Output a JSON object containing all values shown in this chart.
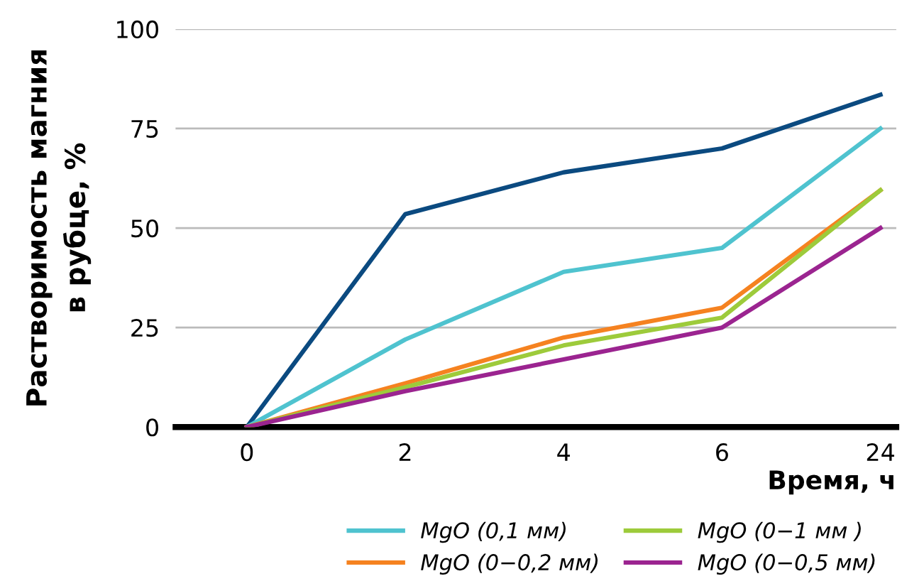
{
  "chart_data": {
    "type": "line",
    "categories": [
      "0",
      "2",
      "4",
      "6",
      "24"
    ],
    "xlabel": "Время, ч",
    "ylabel": "Растворимость магния\nв рубце, %",
    "ylim": [
      0,
      100
    ],
    "yticks": [
      0,
      25,
      50,
      75,
      100
    ],
    "grid": "y",
    "legend": "bottom",
    "marker": "none",
    "line_style": "solid",
    "series": [
      {
        "color": "#0b4a80",
        "values": [
          0,
          53.5,
          64,
          70,
          83.5
        ]
      },
      {
        "name": "MgO (0,1 мм)",
        "color": "#4fc3cf",
        "values": [
          0,
          22,
          39,
          45,
          75
        ]
      },
      {
        "name": "MgO (0−0,2 мм)",
        "color": "#f58220",
        "values": [
          0,
          11,
          22.5,
          30,
          59.5
        ]
      },
      {
        "name": "MgO (0−1 мм )",
        "color": "#9dcb3b",
        "values": [
          0,
          10,
          20.5,
          27.5,
          59.5
        ]
      },
      {
        "name": "MgO (0−0,5 мм)",
        "color": "#9b2490",
        "values": [
          0,
          9,
          17,
          25,
          50
        ]
      }
    ]
  }
}
